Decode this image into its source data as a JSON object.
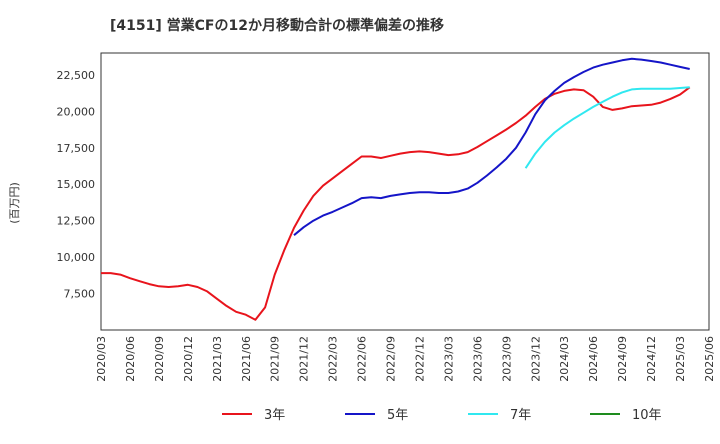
{
  "chart_data": {
    "type": "line",
    "title": "[4151]  営業CFの12か月移動合計の標準偏差の推移",
    "ylabel": "(百万円)",
    "xlabel": "",
    "ylim": [
      5000,
      24000
    ],
    "yticks": [
      7500,
      10000,
      12500,
      15000,
      17500,
      20000,
      22500
    ],
    "ytick_labels": [
      "7,500",
      "10,000",
      "12,500",
      "15,000",
      "17,500",
      "20,000",
      "22,500"
    ],
    "xticks": [
      "2020/03",
      "2020/06",
      "2020/09",
      "2020/12",
      "2021/03",
      "2021/06",
      "2021/09",
      "2021/12",
      "2022/03",
      "2022/06",
      "2022/09",
      "2022/12",
      "2023/03",
      "2023/06",
      "2023/09",
      "2023/12",
      "2024/03",
      "2024/06",
      "2024/09",
      "2024/12",
      "2025/03",
      "2025/06"
    ],
    "grid": true,
    "legend_position": "bottom",
    "series": [
      {
        "name": "3年",
        "color": "#e8141c",
        "points": [
          [
            "2020/03",
            8900
          ],
          [
            "2020/04",
            8900
          ],
          [
            "2020/05",
            8800
          ],
          [
            "2020/06",
            8550
          ],
          [
            "2020/07",
            8350
          ],
          [
            "2020/08",
            8150
          ],
          [
            "2020/09",
            8000
          ],
          [
            "2020/10",
            7950
          ],
          [
            "2020/11",
            8000
          ],
          [
            "2020/12",
            8100
          ],
          [
            "2021/01",
            7950
          ],
          [
            "2021/02",
            7650
          ],
          [
            "2021/03",
            7150
          ],
          [
            "2021/04",
            6650
          ],
          [
            "2021/05",
            6250
          ],
          [
            "2021/06",
            6050
          ],
          [
            "2021/07",
            5700
          ],
          [
            "2021/08",
            6550
          ],
          [
            "2021/09",
            8800
          ],
          [
            "2021/10",
            10500
          ],
          [
            "2021/11",
            12000
          ],
          [
            "2021/12",
            13200
          ],
          [
            "2022/01",
            14200
          ],
          [
            "2022/02",
            14900
          ],
          [
            "2022/03",
            15400
          ],
          [
            "2022/04",
            15900
          ],
          [
            "2022/05",
            16400
          ],
          [
            "2022/06",
            16900
          ],
          [
            "2022/07",
            16900
          ],
          [
            "2022/08",
            16800
          ],
          [
            "2022/09",
            16950
          ],
          [
            "2022/10",
            17100
          ],
          [
            "2022/11",
            17200
          ],
          [
            "2022/12",
            17250
          ],
          [
            "2023/01",
            17200
          ],
          [
            "2023/02",
            17100
          ],
          [
            "2023/03",
            17000
          ],
          [
            "2023/04",
            17050
          ],
          [
            "2023/05",
            17200
          ],
          [
            "2023/06",
            17550
          ],
          [
            "2023/07",
            17950
          ],
          [
            "2023/08",
            18350
          ],
          [
            "2023/09",
            18750
          ],
          [
            "2023/10",
            19200
          ],
          [
            "2023/11",
            19700
          ],
          [
            "2023/12",
            20300
          ],
          [
            "2024/01",
            20850
          ],
          [
            "2024/02",
            21200
          ],
          [
            "2024/03",
            21400
          ],
          [
            "2024/04",
            21500
          ],
          [
            "2024/05",
            21450
          ],
          [
            "2024/06",
            21000
          ],
          [
            "2024/07",
            20300
          ],
          [
            "2024/08",
            20100
          ],
          [
            "2024/09",
            20200
          ],
          [
            "2024/10",
            20350
          ],
          [
            "2024/11",
            20400
          ],
          [
            "2024/12",
            20450
          ],
          [
            "2025/01",
            20600
          ],
          [
            "2025/02",
            20850
          ],
          [
            "2025/03",
            21150
          ],
          [
            "2025/04",
            21650
          ]
        ]
      },
      {
        "name": "5年",
        "color": "#1515c8",
        "points": [
          [
            "2021/11",
            11500
          ],
          [
            "2021/12",
            12050
          ],
          [
            "2022/01",
            12500
          ],
          [
            "2022/02",
            12850
          ],
          [
            "2022/03",
            13100
          ],
          [
            "2022/04",
            13400
          ],
          [
            "2022/05",
            13700
          ],
          [
            "2022/06",
            14050
          ],
          [
            "2022/07",
            14100
          ],
          [
            "2022/08",
            14050
          ],
          [
            "2022/09",
            14200
          ],
          [
            "2022/10",
            14300
          ],
          [
            "2022/11",
            14400
          ],
          [
            "2022/12",
            14450
          ],
          [
            "2023/01",
            14450
          ],
          [
            "2023/02",
            14400
          ],
          [
            "2023/03",
            14400
          ],
          [
            "2023/04",
            14500
          ],
          [
            "2023/05",
            14700
          ],
          [
            "2023/06",
            15100
          ],
          [
            "2023/07",
            15600
          ],
          [
            "2023/08",
            16150
          ],
          [
            "2023/09",
            16750
          ],
          [
            "2023/10",
            17500
          ],
          [
            "2023/11",
            18550
          ],
          [
            "2023/12",
            19800
          ],
          [
            "2024/01",
            20750
          ],
          [
            "2024/02",
            21400
          ],
          [
            "2024/03",
            21950
          ],
          [
            "2024/04",
            22350
          ],
          [
            "2024/05",
            22700
          ],
          [
            "2024/06",
            23000
          ],
          [
            "2024/07",
            23200
          ],
          [
            "2024/08",
            23350
          ],
          [
            "2024/09",
            23500
          ],
          [
            "2024/10",
            23600
          ],
          [
            "2024/11",
            23550
          ],
          [
            "2024/12",
            23450
          ],
          [
            "2025/01",
            23350
          ],
          [
            "2025/02",
            23200
          ],
          [
            "2025/03",
            23050
          ],
          [
            "2025/04",
            22900
          ]
        ]
      },
      {
        "name": "7年",
        "color": "#30e8f0",
        "points": [
          [
            "2023/11",
            16100
          ],
          [
            "2023/12",
            17100
          ],
          [
            "2024/01",
            17900
          ],
          [
            "2024/02",
            18550
          ],
          [
            "2024/03",
            19050
          ],
          [
            "2024/04",
            19500
          ],
          [
            "2024/05",
            19900
          ],
          [
            "2024/06",
            20300
          ],
          [
            "2024/07",
            20650
          ],
          [
            "2024/08",
            21000
          ],
          [
            "2024/09",
            21300
          ],
          [
            "2024/10",
            21500
          ],
          [
            "2024/11",
            21550
          ],
          [
            "2024/12",
            21550
          ],
          [
            "2025/01",
            21550
          ],
          [
            "2025/02",
            21550
          ],
          [
            "2025/03",
            21600
          ],
          [
            "2025/04",
            21650
          ]
        ]
      },
      {
        "name": "10年",
        "color": "#1e8c1e",
        "points": []
      }
    ]
  }
}
